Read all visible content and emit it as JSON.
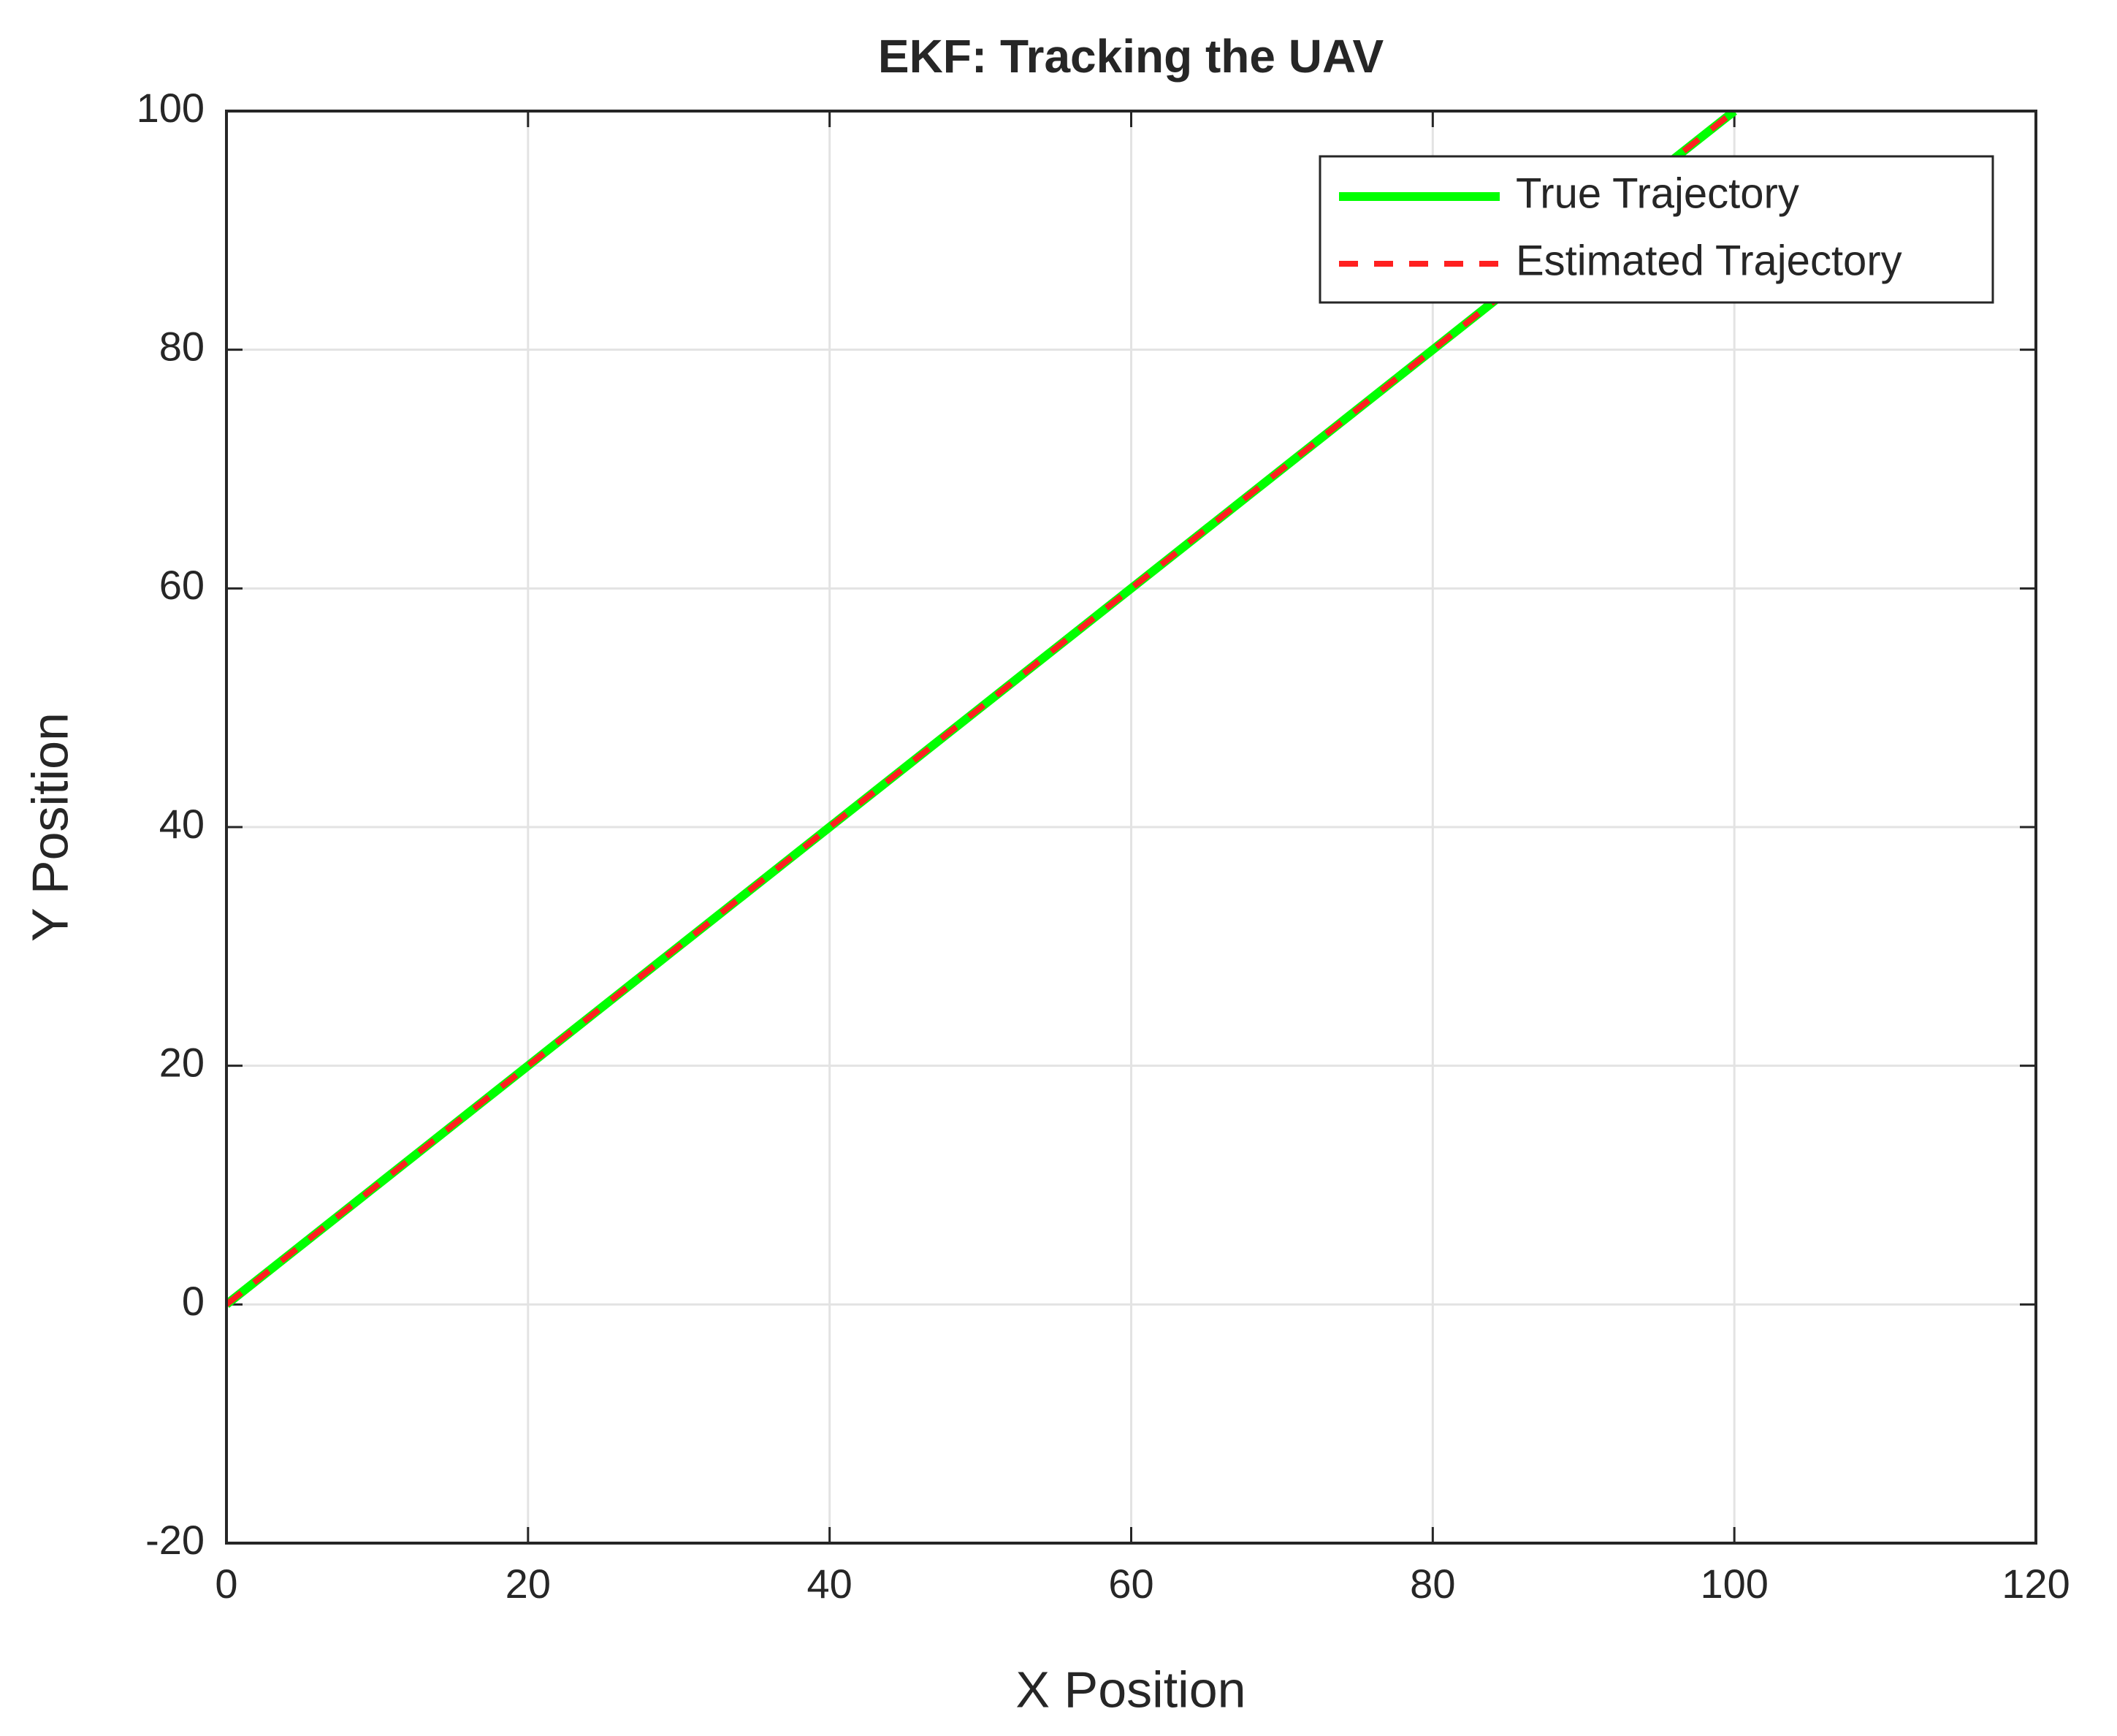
{
  "chart_data": {
    "type": "line",
    "title": "EKF: Tracking the UAV",
    "x_label": "X Position",
    "y_label": "Y Position",
    "x": [
      0,
      10,
      20,
      30,
      40,
      50,
      60,
      70,
      80,
      90,
      100
    ],
    "series": [
      {
        "name": "True Trajectory",
        "color": "#00ff00",
        "dash": "solid",
        "values": [
          0,
          10,
          20,
          30,
          40,
          50,
          60,
          70,
          80,
          90,
          100
        ]
      },
      {
        "name": "Estimated Trajectory",
        "color": "#ff2020",
        "dash": "dashed",
        "values": [
          0,
          10,
          20,
          30,
          40,
          50,
          60,
          70,
          80,
          90,
          100
        ]
      }
    ],
    "xlim": [
      0,
      120
    ],
    "xticks": [
      0,
      20,
      40,
      60,
      80,
      100,
      120
    ],
    "ylim": [
      -20,
      100
    ],
    "yticks": [
      -20,
      0,
      20,
      40,
      60,
      80,
      100
    ],
    "grid": true,
    "legend": "northeast"
  }
}
